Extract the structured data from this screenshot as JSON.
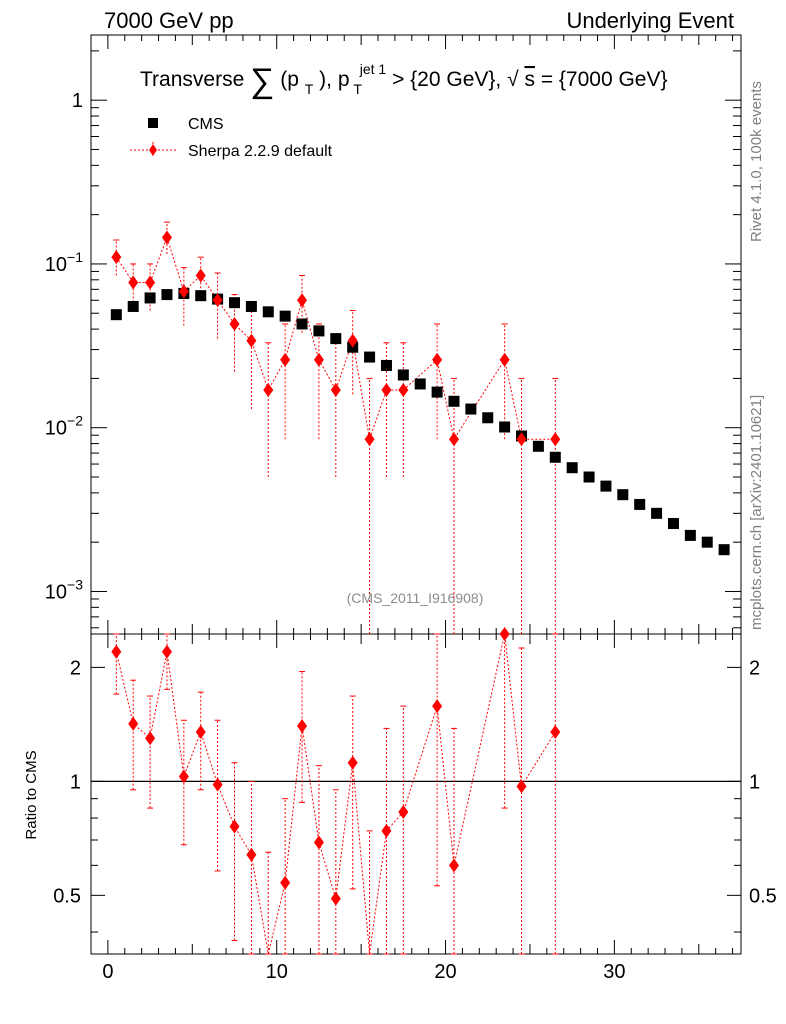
{
  "header": {
    "left": "7000 GeV pp",
    "right": "Underlying Event"
  },
  "side_labels": {
    "rivet": "Rivet 4.1.0,  100k events",
    "mcplots": "mcplots.cern.ch [arXiv:2401.10621]"
  },
  "chart_data": {
    "type": "scatter",
    "title": "Transverse ∑(pT), pT jet 1 > {20 GeV}, √s = {7000 GeV}",
    "title_parts": {
      "lead": "Transverse",
      "sum_symbol": "∑",
      "p": "(p",
      "p_sub": "T",
      "close": "),",
      "p2": "p",
      "p2_sub": "T",
      "p2_sup": "jet 1",
      "cut": "> {20 GeV},",
      "root": "√",
      "s": "s",
      "energy": "= {7000 GeV}"
    },
    "watermark": "(CMS_2011_I916908)",
    "xlim": [
      -1,
      37.5
    ],
    "ylim": [
      0.00055,
      2.5
    ],
    "yscale": "log",
    "ratio_ylim": [
      0.35,
      2.45
    ],
    "ratio_ylabel": "Ratio to CMS",
    "x_ticks": [
      0,
      10,
      20,
      30
    ],
    "x_tick_labels": [
      "0",
      "10",
      "20",
      "30"
    ],
    "y_ticks": [
      0.001,
      0.01,
      0.1,
      1
    ],
    "y_tick_labels": [
      {
        "base": "10",
        "exp": "−3"
      },
      {
        "base": "10",
        "exp": "−2"
      },
      {
        "base": "10",
        "exp": "−1"
      },
      {
        "base": "1",
        "exp": ""
      }
    ],
    "ratio_ticks": [
      0.5,
      1,
      2
    ],
    "ratio_tick_labels": [
      "0.5",
      "1",
      "2"
    ],
    "legend_position": "top-left",
    "series": [
      {
        "name": "CMS",
        "marker": "square",
        "color": "#000000",
        "x": [
          0.5,
          1.5,
          2.5,
          3.5,
          4.5,
          5.5,
          6.5,
          7.5,
          8.5,
          9.5,
          10.5,
          11.5,
          12.5,
          13.5,
          14.5,
          15.5,
          16.5,
          17.5,
          18.5,
          19.5,
          20.5,
          21.5,
          22.5,
          23.5,
          24.5,
          25.5,
          26.5,
          27.5,
          28.5,
          29.5,
          30.5,
          31.5,
          32.5,
          33.5,
          34.5,
          35.5,
          36.5
        ],
        "y": [
          0.049,
          0.055,
          0.062,
          0.065,
          0.066,
          0.064,
          0.061,
          0.058,
          0.055,
          0.051,
          0.048,
          0.043,
          0.039,
          0.035,
          0.031,
          0.027,
          0.024,
          0.021,
          0.0185,
          0.0165,
          0.0145,
          0.013,
          0.0115,
          0.0101,
          0.0089,
          0.0077,
          0.0066,
          0.0057,
          0.005,
          0.0044,
          0.0039,
          0.0034,
          0.003,
          0.0026,
          0.0022,
          0.002,
          0.0018
        ]
      },
      {
        "name": "Sherpa 2.2.9 default",
        "marker": "diamond",
        "color": "#ff0000",
        "x": [
          0.5,
          1.5,
          2.5,
          3.5,
          4.5,
          5.5,
          6.5,
          7.5,
          8.5,
          9.5,
          10.5,
          11.5,
          12.5,
          13.5,
          14.5,
          15.5,
          16.5,
          17.5,
          19.5,
          20.5,
          23.5,
          24.5,
          26.5
        ],
        "y": [
          0.11,
          0.077,
          0.077,
          0.145,
          0.068,
          0.085,
          0.06,
          0.043,
          0.034,
          0.017,
          0.026,
          0.06,
          0.026,
          0.017,
          0.034,
          0.0085,
          0.017,
          0.017,
          0.026,
          0.0085,
          0.026,
          0.0085,
          0.0085
        ],
        "y_low": [
          0.085,
          0.052,
          0.052,
          0.115,
          0.042,
          0.06,
          0.035,
          0.022,
          0.013,
          0.005,
          0.0085,
          0.038,
          0.0085,
          0.005,
          0.016,
          0.0001,
          0.005,
          0.005,
          0.0085,
          0.0001,
          0.0085,
          0.0001,
          0.0001
        ],
        "y_high": [
          0.14,
          0.1,
          0.1,
          0.18,
          0.095,
          0.11,
          0.088,
          0.065,
          0.055,
          0.033,
          0.043,
          0.085,
          0.043,
          0.033,
          0.052,
          0.02,
          0.033,
          0.033,
          0.043,
          0.02,
          0.043,
          0.02,
          0.02
        ],
        "ratio": [
          2.2,
          1.42,
          1.3,
          2.2,
          1.03,
          1.35,
          0.98,
          0.76,
          0.64,
          0.33,
          0.54,
          1.4,
          0.69,
          0.49,
          1.12,
          0.31,
          0.74,
          0.83,
          1.58,
          0.6,
          2.45,
          0.97,
          1.35
        ],
        "ratio_low": [
          1.7,
          0.95,
          0.85,
          1.75,
          0.68,
          0.95,
          0.58,
          0.38,
          0.24,
          0.1,
          0.18,
          0.88,
          0.22,
          0.14,
          0.52,
          0.1,
          0.21,
          0.24,
          0.53,
          0.1,
          0.85,
          0.1,
          0.1
        ],
        "ratio_high": [
          2.45,
          1.85,
          1.68,
          2.45,
          1.45,
          1.72,
          1.45,
          1.12,
          1.0,
          0.65,
          0.9,
          1.95,
          1.1,
          0.95,
          1.68,
          0.74,
          1.38,
          1.58,
          2.45,
          1.38,
          2.45,
          2.25,
          2.45
        ]
      }
    ]
  }
}
